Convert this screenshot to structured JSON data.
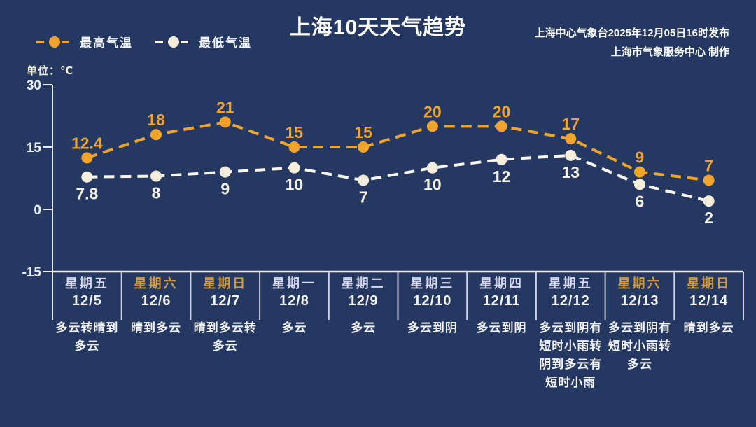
{
  "header": {
    "title": "上海10天天气趋势",
    "publisher_line1": "上海中心气象台2025年12月05日16时发布",
    "publisher_line2": "上海市气象服务中心  制作"
  },
  "unit_label": "单位：℃",
  "colors": {
    "background": "#243861",
    "high": "#F1A42C",
    "high_label": "#F1A42C",
    "low_marker": "#F5EEDC",
    "low_line": "#F8F6EF",
    "low_label": "#F6F2E6",
    "axis": "#E9ECF4",
    "divider": "#CBD2E4",
    "yaxis_label": "#EDEFF6",
    "weekday": "#D8D9EF",
    "weekend": "#D29C3C",
    "date": "#F4F5FB",
    "weather": "#F2F3F8"
  },
  "chart_data": {
    "type": "line",
    "title": "上海10天天气趋势",
    "ylabel": "℃",
    "ylim": [
      -15,
      30
    ],
    "yticks": [
      30,
      15,
      0,
      -15
    ],
    "grid": false,
    "legend_position": "top-left",
    "categories": [
      {
        "weekday": "星期五",
        "date": "12/5",
        "weekend": false,
        "weather": "多云转晴到多云",
        "weather_lines": [
          "多云转晴到",
          "多云"
        ]
      },
      {
        "weekday": "星期六",
        "date": "12/6",
        "weekend": true,
        "weather": "晴到多云",
        "weather_lines": [
          "晴到多云"
        ]
      },
      {
        "weekday": "星期日",
        "date": "12/7",
        "weekend": true,
        "weather": "晴到多云转多云",
        "weather_lines": [
          "晴到多云转",
          "多云"
        ]
      },
      {
        "weekday": "星期一",
        "date": "12/8",
        "weekend": false,
        "weather": "多云",
        "weather_lines": [
          "多云"
        ]
      },
      {
        "weekday": "星期二",
        "date": "12/9",
        "weekend": false,
        "weather": "多云",
        "weather_lines": [
          "多云"
        ]
      },
      {
        "weekday": "星期三",
        "date": "12/10",
        "weekend": false,
        "weather": "多云到阴",
        "weather_lines": [
          "多云到阴"
        ]
      },
      {
        "weekday": "星期四",
        "date": "12/11",
        "weekend": false,
        "weather": "多云到阴",
        "weather_lines": [
          "多云到阴"
        ]
      },
      {
        "weekday": "星期五",
        "date": "12/12",
        "weekend": false,
        "weather": "多云到阴有短时小雨转阴到多云有短时小雨",
        "weather_lines": [
          "多云到阴有",
          "短时小雨转",
          "阴到多云有",
          "短时小雨"
        ]
      },
      {
        "weekday": "星期六",
        "date": "12/13",
        "weekend": true,
        "weather": "多云到阴有短时小雨转多云",
        "weather_lines": [
          "多云到阴有",
          "短时小雨转",
          "多云"
        ]
      },
      {
        "weekday": "星期日",
        "date": "12/14",
        "weekend": true,
        "weather": "晴到多云",
        "weather_lines": [
          "晴到多云"
        ]
      }
    ],
    "series": [
      {
        "name": "最高气温",
        "values": [
          12.4,
          18,
          21,
          15,
          15,
          20,
          20,
          17,
          9,
          7
        ],
        "color": "#F1A42C",
        "line_color": "#F1A42C",
        "label_color": "#F1A42C",
        "label_position": "above"
      },
      {
        "name": "最低气温",
        "values": [
          7.8,
          8,
          9,
          10,
          7,
          10,
          12,
          13,
          6,
          2
        ],
        "color": "#F5EEDC",
        "line_color": "#F8F6EF",
        "label_color": "#F6F2E6",
        "label_position": "below"
      }
    ]
  }
}
